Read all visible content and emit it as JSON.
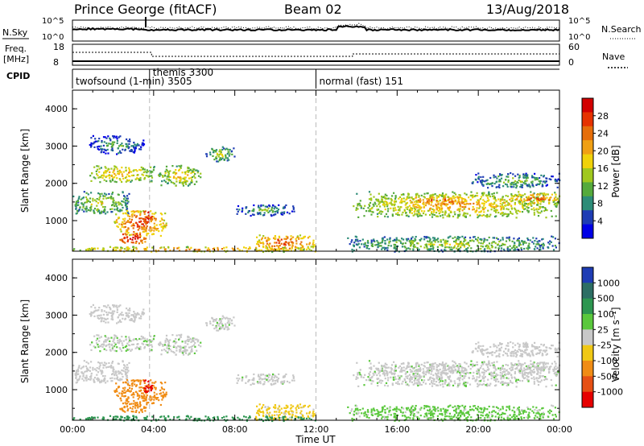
{
  "header": {
    "station": "Prince George (fitACF)",
    "beam": "Beam 02",
    "date": "13/Aug/2018"
  },
  "noise_panel": {
    "left_label": "N.Sky",
    "right_label": "N.Search",
    "left_ticks": [
      "10^5",
      "10^0"
    ],
    "right_ticks": [
      "10^5",
      "10^0"
    ]
  },
  "freq_panel": {
    "left_label_1": "Freq.",
    "left_label_2": "[MHz]",
    "left_ticks": [
      "18",
      "8"
    ],
    "right_label": "Nave",
    "right_ticks": [
      "60",
      "0"
    ]
  },
  "cpid": {
    "label": "CPID",
    "segments": [
      {
        "label": "twofsound (1-min) 3505",
        "start_hour": 0
      },
      {
        "label": "themis 3300",
        "start_hour": 3.8
      },
      {
        "label": "normal (fast) 151",
        "start_hour": 12
      }
    ]
  },
  "time_axis": {
    "label": "Time UT",
    "ticks": [
      "00:00",
      "04:00",
      "08:00",
      "12:00",
      "16:00",
      "20:00",
      "00:00"
    ]
  },
  "power_panel": {
    "ylabel": "Slant Range [km]",
    "yticks": [
      "1000",
      "2000",
      "3000",
      "4000"
    ],
    "cbar_label": "Power [dB]",
    "cbar_ticks": [
      "4",
      "8",
      "12",
      "16",
      "20",
      "24",
      "28"
    ],
    "cbar_colors": [
      "#0000e6",
      "#1e3cb4",
      "#2d8c78",
      "#55aa3c",
      "#a0c81e",
      "#f0d20a",
      "#f0a014",
      "#e66e0a",
      "#e63200",
      "#d20000"
    ]
  },
  "velocity_panel": {
    "ylabel": "Slant Range [km]",
    "yticks": [
      "1000",
      "2000",
      "3000",
      "4000"
    ],
    "cbar_label": "Velocity [m s⁻¹]",
    "cbar_ticks": [
      "1000",
      "500",
      "100",
      "25",
      "-25",
      "-100",
      "-500",
      "-1000"
    ],
    "cbar_colors": [
      "#1e3cb4",
      "#2d6e64",
      "#2d9650",
      "#5ac83c",
      "#c8c8c8",
      "#f0c814",
      "#f08c14",
      "#e65014",
      "#e60000"
    ]
  },
  "chart_data": {
    "type": "heatmap",
    "title": "Prince George (fitACF) Beam 02 13/Aug/2018",
    "xlabel": "Time UT",
    "ylabel": "Slant Range [km]",
    "xlim_hours": [
      0,
      24
    ],
    "ylim_km": [
      180,
      4500
    ],
    "power_range_db": [
      0,
      30
    ],
    "velocity_range_ms": [
      -1000,
      1000
    ],
    "regions": [
      {
        "t": [
          0.8,
          4.0
        ],
        "r": [
          2050,
          2500
        ],
        "p": 16,
        "v": 15
      },
      {
        "t": [
          4.2,
          6.3
        ],
        "r": [
          1950,
          2500
        ],
        "p": 15,
        "v": 10
      },
      {
        "t": [
          0.0,
          2.8
        ],
        "r": [
          1200,
          1800
        ],
        "p": 12,
        "v": 5
      },
      {
        "t": [
          2.0,
          4.6
        ],
        "r": [
          600,
          1300
        ],
        "p": 21,
        "v": -160
      },
      {
        "t": [
          2.2,
          3.6
        ],
        "r": [
          400,
          700
        ],
        "p": 26,
        "v": -200
      },
      {
        "t": [
          3.5,
          3.9
        ],
        "r": [
          900,
          1400
        ],
        "p": 27,
        "v": -900
      },
      {
        "t": [
          8.0,
          11.0
        ],
        "r": [
          1150,
          1450
        ],
        "p": 8,
        "v": 8
      },
      {
        "t": [
          9.0,
          12.0
        ],
        "r": [
          200,
          650
        ],
        "p": 21,
        "v": -40
      },
      {
        "t": [
          0.0,
          12.0
        ],
        "r": [
          180,
          320
        ],
        "p": 18,
        "v": 80
      },
      {
        "t": [
          13.8,
          24.0
        ],
        "r": [
          1100,
          1800
        ],
        "p": 16,
        "v": 10
      },
      {
        "t": [
          16.5,
          19.5
        ],
        "r": [
          1450,
          1650
        ],
        "p": 22,
        "v": 5
      },
      {
        "t": [
          21.5,
          24.0
        ],
        "r": [
          1450,
          1750
        ],
        "p": 20,
        "v": 5
      },
      {
        "t": [
          19.5,
          24.0
        ],
        "r": [
          1900,
          2300
        ],
        "p": 9,
        "v": 5
      },
      {
        "t": [
          13.5,
          24.0
        ],
        "r": [
          180,
          600
        ],
        "p": 11,
        "v": 40
      },
      {
        "t": [
          6.5,
          8.0
        ],
        "r": [
          2600,
          3000
        ],
        "p": 11,
        "v": 10
      },
      {
        "t": [
          0.8,
          3.5
        ],
        "r": [
          2800,
          3300
        ],
        "p": 7,
        "v": 5
      }
    ]
  }
}
